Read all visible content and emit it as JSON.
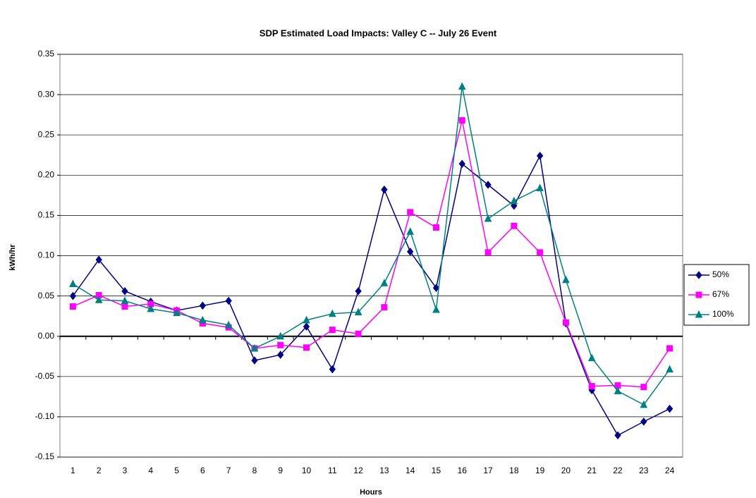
{
  "chart_data": {
    "type": "line",
    "title": "SDP Estimated Load Impacts:  Valley C -- July 26 Event",
    "x_label": "Hours",
    "y_label": "kWh/hr",
    "categories": [
      1,
      2,
      3,
      4,
      5,
      6,
      7,
      8,
      9,
      10,
      11,
      12,
      13,
      14,
      15,
      16,
      17,
      18,
      19,
      20,
      21,
      22,
      23,
      24
    ],
    "series": [
      {
        "name": "50%",
        "color": "#000080",
        "marker": "diamond",
        "values": [
          0.05,
          0.095,
          0.056,
          0.043,
          0.032,
          0.038,
          0.044,
          -0.03,
          -0.023,
          0.012,
          -0.041,
          0.056,
          0.182,
          0.105,
          0.06,
          0.214,
          0.188,
          0.162,
          0.224,
          0.016,
          -0.067,
          -0.123,
          -0.106,
          -0.09
        ]
      },
      {
        "name": "67%",
        "color": "#ff00ff",
        "marker": "square",
        "values": [
          0.037,
          0.051,
          0.037,
          0.04,
          0.032,
          0.016,
          0.011,
          -0.015,
          -0.011,
          -0.014,
          0.008,
          0.003,
          0.036,
          0.154,
          0.135,
          0.268,
          0.104,
          0.137,
          0.104,
          0.017,
          -0.062,
          -0.061,
          -0.063,
          -0.015
        ]
      },
      {
        "name": "100%",
        "color": "#008080",
        "marker": "triangle",
        "values": [
          0.065,
          0.045,
          0.044,
          0.034,
          0.029,
          0.02,
          0.014,
          -0.015,
          0.0,
          0.02,
          0.028,
          0.03,
          0.066,
          0.13,
          0.033,
          0.31,
          0.146,
          0.168,
          0.184,
          0.07,
          -0.027,
          -0.068,
          -0.085,
          -0.041
        ]
      }
    ],
    "ylim": [
      -0.15,
      0.35
    ],
    "yticks": [
      {
        "value": -0.15,
        "label": "-0.15"
      },
      {
        "value": -0.1,
        "label": "-0.10"
      },
      {
        "value": -0.05,
        "label": "-0.05"
      },
      {
        "value": 0,
        "label": "0.00"
      },
      {
        "value": 0.05,
        "label": "0.05"
      },
      {
        "value": 0.1,
        "label": "0.10"
      },
      {
        "value": 0.15,
        "label": "0.15"
      },
      {
        "value": 0.2,
        "label": "0.20"
      },
      {
        "value": 0.25,
        "label": "0.25"
      },
      {
        "value": 0.3,
        "label": "0.30"
      },
      {
        "value": 0.35,
        "label": "0.35"
      }
    ],
    "grid": true,
    "legend": "right"
  }
}
